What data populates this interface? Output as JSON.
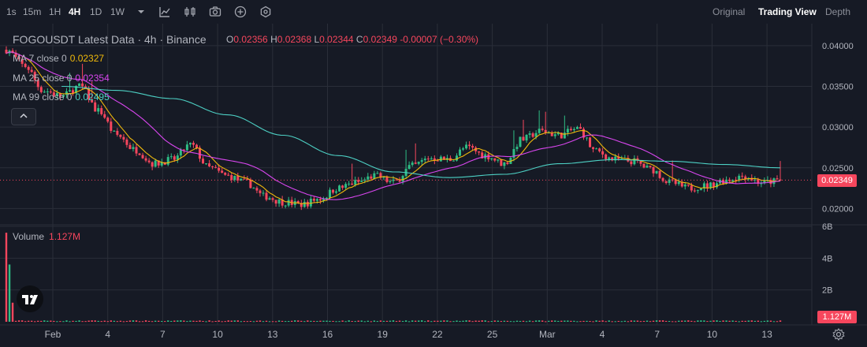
{
  "toolbar": {
    "intervals": [
      "1s",
      "15m",
      "1H",
      "4H",
      "1D",
      "1W"
    ],
    "active_interval": "4H",
    "icons": [
      "chevron-down-icon",
      "indicators-icon",
      "chart-type-icon",
      "camera-icon",
      "plus-circle-icon",
      "settings-hex-icon"
    ]
  },
  "views": {
    "original": "Original",
    "trading_view": "Trading View",
    "depth": "Depth",
    "active": "Trading View"
  },
  "legend": {
    "title": "FOGOUSDT Latest Data · 4h · Binance",
    "open_label": "O",
    "open": "0.02356",
    "high_label": "H",
    "high": "0.02368",
    "low_label": "L",
    "low": "0.02344",
    "close_label": "C",
    "close": "0.02349",
    "change": "-0.00007 (−0.30%)",
    "ma7_label": "MA 7 close 0",
    "ma7_value": "0.02327",
    "ma25_label": "MA 25 close 0",
    "ma25_value": "0.02354",
    "ma99_label": "MA 99 close 0",
    "ma99_value": "0.02495"
  },
  "volume": {
    "label": "Volume",
    "value": "1.127M"
  },
  "price_tag": "0.02349",
  "volume_tag": "1.127M",
  "colors": {
    "up": "#2ebd85",
    "down": "#f6465d",
    "ma7": "#f0b90b",
    "ma25": "#d946ef",
    "ma99": "#4dd0c4",
    "grid": "#2a2e39",
    "text": "#b2b5be"
  },
  "chart_data": {
    "type": "line",
    "title": "FOGOUSDT Latest Data · 4h · Binance",
    "x_ticks": [
      "Feb",
      "4",
      "7",
      "10",
      "13",
      "16",
      "19",
      "22",
      "25",
      "Mar",
      "4",
      "7",
      "10",
      "13"
    ],
    "price_axis": {
      "ticks": [
        "0.04000",
        "0.03500",
        "0.03000",
        "0.02500",
        "0.02000"
      ],
      "ylim": [
        0.0182,
        0.0425
      ]
    },
    "volume_axis": {
      "ticks": [
        "6B",
        "4B",
        "2B"
      ],
      "ylim": [
        0,
        6
      ]
    },
    "series": [
      {
        "name": "close (approx.)",
        "x": [
          0,
          1,
          2,
          3,
          4,
          5,
          6,
          7,
          8,
          9,
          10,
          11,
          12,
          13,
          14,
          15,
          16,
          17,
          18,
          19,
          20,
          21,
          22,
          23,
          24,
          25,
          26,
          27,
          28,
          29,
          30,
          31,
          32,
          33,
          34,
          35,
          36,
          37,
          38,
          39,
          40,
          41,
          42
        ],
        "y": [
          0.0395,
          0.0375,
          0.0345,
          0.0338,
          0.035,
          0.032,
          0.029,
          0.0272,
          0.0255,
          0.026,
          0.0278,
          0.025,
          0.024,
          0.0232,
          0.0215,
          0.0208,
          0.0205,
          0.0212,
          0.0225,
          0.0232,
          0.024,
          0.0232,
          0.0252,
          0.0262,
          0.026,
          0.0275,
          0.0265,
          0.0255,
          0.0285,
          0.0295,
          0.029,
          0.0298,
          0.027,
          0.026,
          0.0258,
          0.0248,
          0.0232,
          0.0225,
          0.0228,
          0.0235,
          0.024,
          0.0232,
          0.0234
        ]
      },
      {
        "name": "MA 99",
        "x": [
          3,
          6,
          9,
          12,
          15,
          18,
          21,
          24,
          27,
          30,
          33,
          36,
          39,
          42
        ],
        "y": [
          0.035,
          0.0345,
          0.0335,
          0.0315,
          0.029,
          0.0265,
          0.0245,
          0.0238,
          0.0242,
          0.0255,
          0.026,
          0.0258,
          0.0254,
          0.025
        ]
      }
    ]
  }
}
